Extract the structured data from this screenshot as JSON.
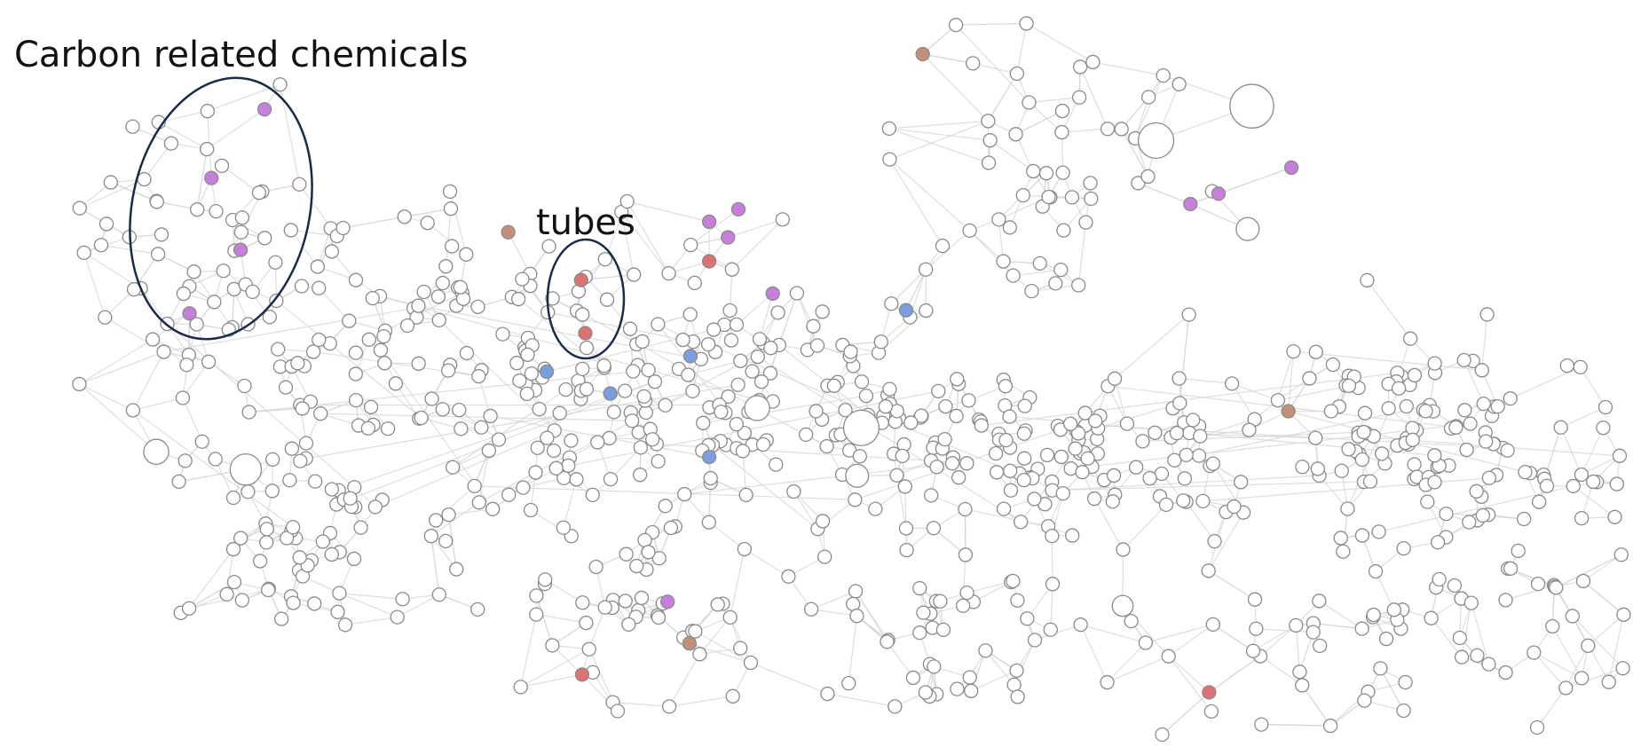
{
  "annotations": [
    {
      "label": "Carbon related chemicals"
    },
    {
      "label": "tubes"
    }
  ]
}
